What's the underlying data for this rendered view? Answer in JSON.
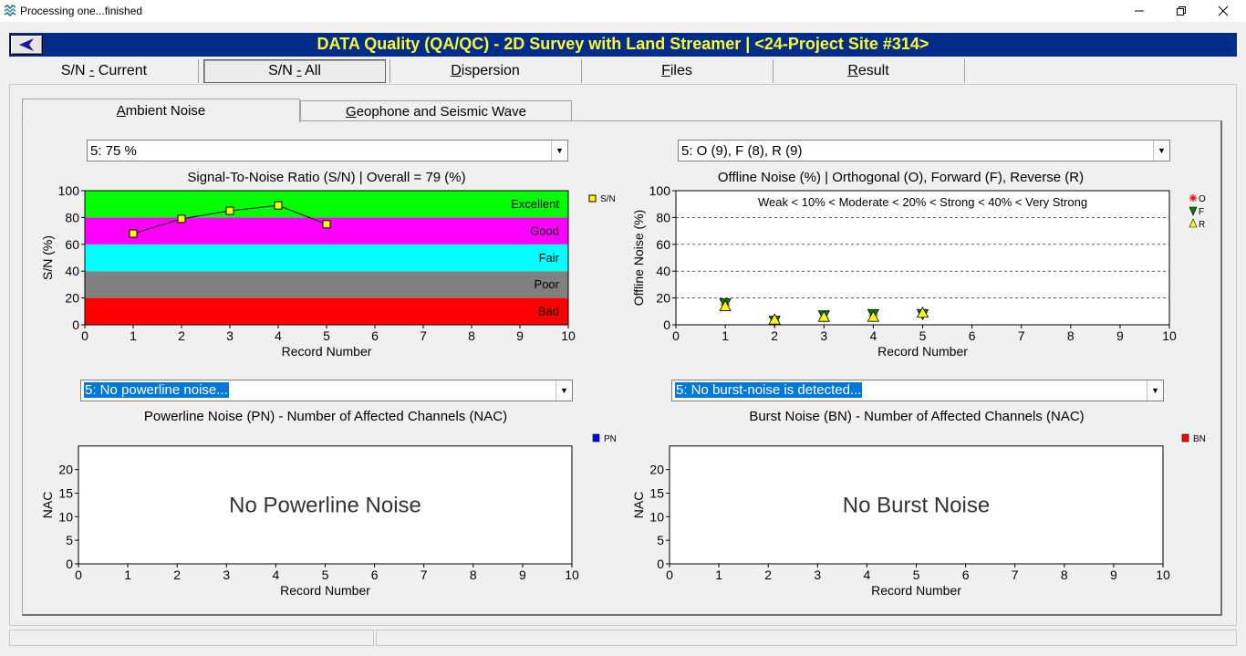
{
  "window": {
    "title": "Processing one...finished"
  },
  "header": {
    "title": "DATA Quality (QA/QC) - 2D Survey with Land Streamer | <24-Project Site #314>"
  },
  "top_tabs": [
    {
      "label": "S/N - Current"
    },
    {
      "label": "S/N - All"
    },
    {
      "label": "Dispersion"
    },
    {
      "label": "Files"
    },
    {
      "label": "Result"
    }
  ],
  "sub_tabs": [
    {
      "label": "Ambient Noise"
    },
    {
      "label": "Geophone and Seismic Wave"
    }
  ],
  "panels": {
    "sn": {
      "combo": "5: 75 %",
      "title": "Signal-To-Noise Ratio (S/N) | Overall = 79 (%)"
    },
    "offline": {
      "combo": "5: O (9), F (8), R (9)",
      "title": "Offline Noise (%) | Orthogonal (O), Forward (F), Reverse (R)"
    },
    "powerline": {
      "combo": "5: No powerline noise...",
      "title": "Powerline Noise (PN) - Number of Affected Channels (NAC)"
    },
    "burst": {
      "combo": "5: No burst-noise is detected...",
      "title": "Burst Noise (BN) - Number of Affected Channels (NAC)"
    }
  },
  "chart_data": [
    {
      "type": "line",
      "x": [
        1,
        2,
        3,
        4,
        5
      ],
      "series": [
        {
          "name": "S/N",
          "values": [
            68,
            79,
            85,
            89,
            75
          ],
          "color": "#ffff00"
        }
      ],
      "xlabel": "Record Number",
      "ylabel": "S/N (%)",
      "xlim": [
        0,
        10
      ],
      "ylim": [
        0,
        100
      ],
      "x_ticks": [
        "0",
        "1",
        "2",
        "3",
        "4",
        "5",
        "6",
        "7",
        "8",
        "9",
        "10"
      ],
      "y_ticks": [
        "0",
        "20",
        "40",
        "60",
        "80",
        "100"
      ],
      "bands": [
        {
          "label": "Bad",
          "from": 0,
          "to": 20,
          "color": "#ff0000"
        },
        {
          "label": "Poor",
          "from": 20,
          "to": 40,
          "color": "#808080"
        },
        {
          "label": "Fair",
          "from": 40,
          "to": 60,
          "color": "#00ffff"
        },
        {
          "label": "Good",
          "from": 60,
          "to": 80,
          "color": "#ff00ff"
        },
        {
          "label": "Excellent",
          "from": 80,
          "to": 100,
          "color": "#00ff00"
        }
      ],
      "legend": "right"
    },
    {
      "type": "scatter",
      "x": [
        1,
        2,
        3,
        4,
        5
      ],
      "series": [
        {
          "name": "O",
          "values": [
            15,
            3,
            5,
            7,
            9
          ],
          "color": "#ff0000"
        },
        {
          "name": "F",
          "values": [
            16,
            3,
            7,
            8,
            8
          ],
          "color": "#008000"
        },
        {
          "name": "R",
          "values": [
            14,
            4,
            6,
            6,
            9
          ],
          "color": "#ffff00"
        }
      ],
      "xlabel": "Record Number",
      "ylabel": "Offline Noise (%)",
      "xlim": [
        0,
        10
      ],
      "ylim": [
        0,
        100
      ],
      "x_ticks": [
        "0",
        "1",
        "2",
        "3",
        "4",
        "5",
        "6",
        "7",
        "8",
        "9",
        "10"
      ],
      "y_ticks": [
        "0",
        "20",
        "40",
        "60",
        "80",
        "100"
      ],
      "annotation": "Weak < 10% < Moderate < 20% < Strong < 40% < Very Strong",
      "grid": true,
      "legend": "right"
    },
    {
      "type": "bar",
      "series": [
        {
          "name": "PN",
          "values": [],
          "color": "#0000ff"
        }
      ],
      "xlabel": "Record Number",
      "ylabel": "NAC",
      "xlim": [
        0,
        10
      ],
      "ylim": [
        0,
        24
      ],
      "x_ticks": [
        "0",
        "1",
        "2",
        "3",
        "4",
        "5",
        "6",
        "7",
        "8",
        "9",
        "10"
      ],
      "y_ticks": [
        "0",
        "5",
        "10",
        "15",
        "20"
      ],
      "annotation": "No Powerline Noise",
      "legend": "right"
    },
    {
      "type": "bar",
      "series": [
        {
          "name": "BN",
          "values": [],
          "color": "#ff0000"
        }
      ],
      "xlabel": "Record Number",
      "ylabel": "NAC",
      "xlim": [
        0,
        10
      ],
      "ylim": [
        0,
        24
      ],
      "x_ticks": [
        "0",
        "1",
        "2",
        "3",
        "4",
        "5",
        "6",
        "7",
        "8",
        "9",
        "10"
      ],
      "y_ticks": [
        "0",
        "5",
        "10",
        "15",
        "20"
      ],
      "annotation": "No Burst Noise",
      "legend": "right"
    }
  ]
}
